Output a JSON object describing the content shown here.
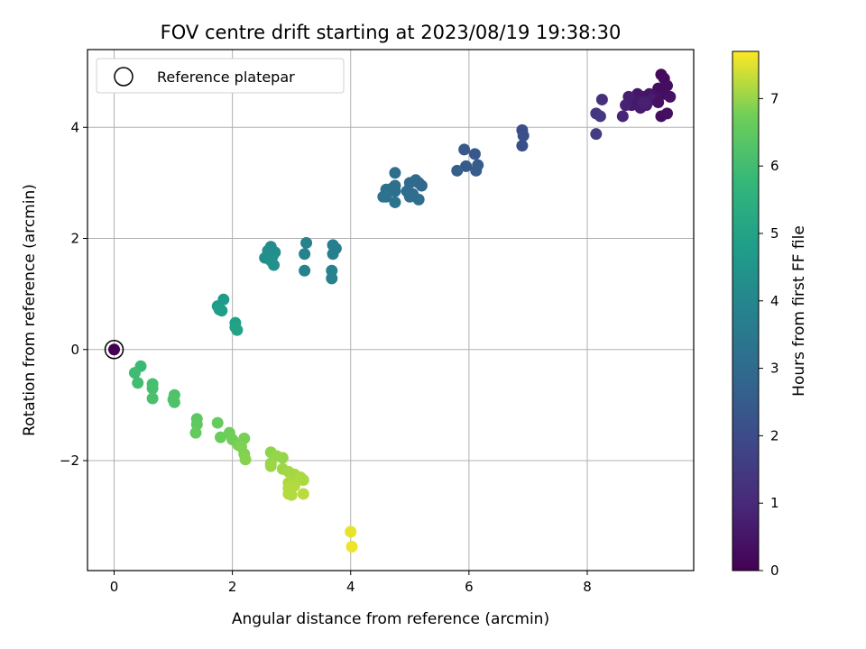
{
  "chart_data": {
    "type": "scatter",
    "title": "FOV centre drift starting at 2023/08/19 19:38:30",
    "xlabel": "Angular distance from reference (arcmin)",
    "ylabel": "Rotation from reference (arcmin)",
    "xlim": [
      -0.45,
      9.8
    ],
    "ylim": [
      -3.98,
      5.4
    ],
    "xticks": [
      0,
      2,
      4,
      6,
      8
    ],
    "xtick_labels": [
      "0",
      "2",
      "4",
      "6",
      "8"
    ],
    "yticks": [
      -2,
      0,
      2,
      4
    ],
    "ytick_labels": [
      "−2",
      "0",
      "2",
      "4"
    ],
    "grid": true,
    "legend": {
      "position": "top-left",
      "entries": [
        "Reference platepar"
      ]
    },
    "reference_point": {
      "x": 0,
      "y": 0,
      "t": 0
    },
    "colorbar": {
      "label": "Hours from first FF file",
      "colormap": "viridis",
      "range": [
        0,
        7.7
      ],
      "ticks": [
        0,
        1,
        2,
        3,
        4,
        5,
        6,
        7
      ],
      "tick_labels": [
        "0",
        "1",
        "2",
        "3",
        "4",
        "5",
        "6",
        "7"
      ]
    },
    "points": [
      [
        9.25,
        4.95,
        0.2
      ],
      [
        9.3,
        4.88,
        0.25
      ],
      [
        9.2,
        4.7,
        0.3
      ],
      [
        9.35,
        4.75,
        0.3
      ],
      [
        9.3,
        4.6,
        0.35
      ],
      [
        9.4,
        4.55,
        0.4
      ],
      [
        9.15,
        4.55,
        0.45
      ],
      [
        9.05,
        4.6,
        0.5
      ],
      [
        8.95,
        4.55,
        0.5
      ],
      [
        8.85,
        4.6,
        0.55
      ],
      [
        8.8,
        4.5,
        0.6
      ],
      [
        8.75,
        4.4,
        0.6
      ],
      [
        8.9,
        4.35,
        0.65
      ],
      [
        9.0,
        4.4,
        0.7
      ],
      [
        9.1,
        4.5,
        0.7
      ],
      [
        8.7,
        4.55,
        0.75
      ],
      [
        8.65,
        4.4,
        0.8
      ],
      [
        9.25,
        4.2,
        0.3
      ],
      [
        9.35,
        4.25,
        0.35
      ],
      [
        9.2,
        4.45,
        0.4
      ],
      [
        8.95,
        4.45,
        0.8
      ],
      [
        8.6,
        4.2,
        0.9
      ],
      [
        8.25,
        4.5,
        1.2
      ],
      [
        8.15,
        4.25,
        1.4
      ],
      [
        8.22,
        4.2,
        1.45
      ],
      [
        8.15,
        3.88,
        1.55
      ],
      [
        6.9,
        3.95,
        2.05
      ],
      [
        6.92,
        3.85,
        2.1
      ],
      [
        6.9,
        3.67,
        2.15
      ],
      [
        6.1,
        3.52,
        2.35
      ],
      [
        5.92,
        3.6,
        2.4
      ],
      [
        5.95,
        3.3,
        2.45
      ],
      [
        6.15,
        3.32,
        2.5
      ],
      [
        6.12,
        3.22,
        2.55
      ],
      [
        5.8,
        3.22,
        2.6
      ],
      [
        5.15,
        3.0,
        2.9
      ],
      [
        5.1,
        3.05,
        2.95
      ],
      [
        5.0,
        3.0,
        3.0
      ],
      [
        4.95,
        2.85,
        3.05
      ],
      [
        5.05,
        2.8,
        3.05
      ],
      [
        5.15,
        2.7,
        3.1
      ],
      [
        5.0,
        2.75,
        3.1
      ],
      [
        4.75,
        3.18,
        3.15
      ],
      [
        4.7,
        2.9,
        3.15
      ],
      [
        4.75,
        2.85,
        3.2
      ],
      [
        4.6,
        2.88,
        3.2
      ],
      [
        4.55,
        2.75,
        3.25
      ],
      [
        4.6,
        2.75,
        3.25
      ],
      [
        4.75,
        2.65,
        3.3
      ],
      [
        4.75,
        2.95,
        3.15
      ],
      [
        5.2,
        2.95,
        2.9
      ],
      [
        3.7,
        1.88,
        3.7
      ],
      [
        3.75,
        1.82,
        3.75
      ],
      [
        3.7,
        1.72,
        3.75
      ],
      [
        3.68,
        1.42,
        3.8
      ],
      [
        3.68,
        1.28,
        3.8
      ],
      [
        3.25,
        1.92,
        3.85
      ],
      [
        3.22,
        1.72,
        3.9
      ],
      [
        3.22,
        1.42,
        3.9
      ],
      [
        2.65,
        1.85,
        4.2
      ],
      [
        2.6,
        1.78,
        4.25
      ],
      [
        2.72,
        1.75,
        4.25
      ],
      [
        2.68,
        1.68,
        4.3
      ],
      [
        2.55,
        1.65,
        4.3
      ],
      [
        2.65,
        1.6,
        4.35
      ],
      [
        2.7,
        1.52,
        4.35
      ],
      [
        1.85,
        0.9,
        4.7
      ],
      [
        1.75,
        0.78,
        4.75
      ],
      [
        1.78,
        0.72,
        4.8
      ],
      [
        1.82,
        0.7,
        4.85
      ],
      [
        2.05,
        0.48,
        4.9
      ],
      [
        2.05,
        0.4,
        4.95
      ],
      [
        2.08,
        0.35,
        5.0
      ],
      [
        0.45,
        -0.3,
        5.9
      ],
      [
        0.35,
        -0.42,
        5.95
      ],
      [
        0.4,
        -0.6,
        6.0
      ],
      [
        0.65,
        -0.62,
        6.05
      ],
      [
        0.65,
        -0.7,
        6.1
      ],
      [
        0.65,
        -0.88,
        6.15
      ],
      [
        1.02,
        -0.82,
        6.2
      ],
      [
        1.02,
        -0.95,
        6.25
      ],
      [
        1.0,
        -0.9,
        6.25
      ],
      [
        1.4,
        -1.25,
        6.45
      ],
      [
        1.4,
        -1.35,
        6.5
      ],
      [
        1.38,
        -1.5,
        6.55
      ],
      [
        1.75,
        -1.32,
        6.6
      ],
      [
        1.8,
        -1.58,
        6.65
      ],
      [
        1.95,
        -1.5,
        6.7
      ],
      [
        2.0,
        -1.62,
        6.75
      ],
      [
        2.2,
        -1.6,
        6.8
      ],
      [
        2.1,
        -1.72,
        6.8
      ],
      [
        2.15,
        -1.75,
        6.85
      ],
      [
        2.2,
        -1.88,
        6.85
      ],
      [
        2.22,
        -1.98,
        6.9
      ],
      [
        2.65,
        -1.85,
        6.95
      ],
      [
        2.75,
        -1.92,
        7.0
      ],
      [
        2.85,
        -1.95,
        7.0
      ],
      [
        2.65,
        -2.05,
        7.0
      ],
      [
        2.65,
        -2.1,
        7.05
      ],
      [
        2.85,
        -2.15,
        7.05
      ],
      [
        2.95,
        -2.2,
        7.1
      ],
      [
        3.05,
        -2.25,
        7.1
      ],
      [
        3.1,
        -2.3,
        7.1
      ],
      [
        3.15,
        -2.3,
        7.15
      ],
      [
        3.2,
        -2.35,
        7.15
      ],
      [
        2.95,
        -2.4,
        7.15
      ],
      [
        3.05,
        -2.45,
        7.2
      ],
      [
        2.95,
        -2.6,
        7.2
      ],
      [
        3.0,
        -2.62,
        7.2
      ],
      [
        3.2,
        -2.6,
        7.25
      ],
      [
        2.95,
        -2.5,
        7.2
      ],
      [
        4.0,
        -3.28,
        7.55
      ],
      [
        4.02,
        -3.55,
        7.6
      ]
    ]
  }
}
